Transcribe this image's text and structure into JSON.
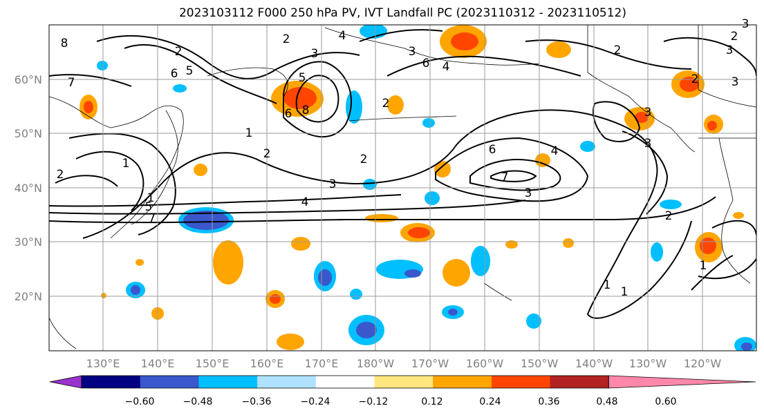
{
  "title": "2023103112 F000 250 hPa PV, IVT Landfall PC (2023110312 - 2023110512)",
  "lat_labels": [
    "60°N",
    "50°N",
    "40°N",
    "30°N",
    "20°N"
  ],
  "lon_labels": [
    "130°E",
    "140°E",
    "150°E",
    "160°E",
    "170°E",
    "180°W",
    "170°W",
    "160°W",
    "150°W",
    "140°W",
    "130°W",
    "120°W"
  ],
  "colorbar": {
    "colors": [
      "#9933cc",
      "#000080",
      "#3a58cc",
      "#00bfff",
      "#b0e2ff",
      "#ffffff",
      "#ffe680",
      "#ffa500",
      "#ff4500",
      "#b22222",
      "#ff88aa"
    ],
    "tick_labels": [
      "−0.60",
      "−0.48",
      "−0.36",
      "−0.24",
      "−0.12",
      "0.12",
      "0.24",
      "0.36",
      "0.48",
      "0.60"
    ]
  },
  "contour_labels": [
    "8",
    "2",
    "5",
    "3",
    "4",
    "6",
    "7",
    "8",
    "2",
    "4",
    "1",
    "2",
    "5",
    "6",
    "2",
    "4",
    "1",
    "2",
    "3",
    "1",
    "7",
    "6",
    "5",
    "7",
    "3",
    "3",
    "3",
    "2",
    "1",
    "4",
    "1",
    "2",
    "1",
    "6",
    "3",
    "2",
    "3",
    "2",
    "3",
    "2",
    "3"
  ]
}
